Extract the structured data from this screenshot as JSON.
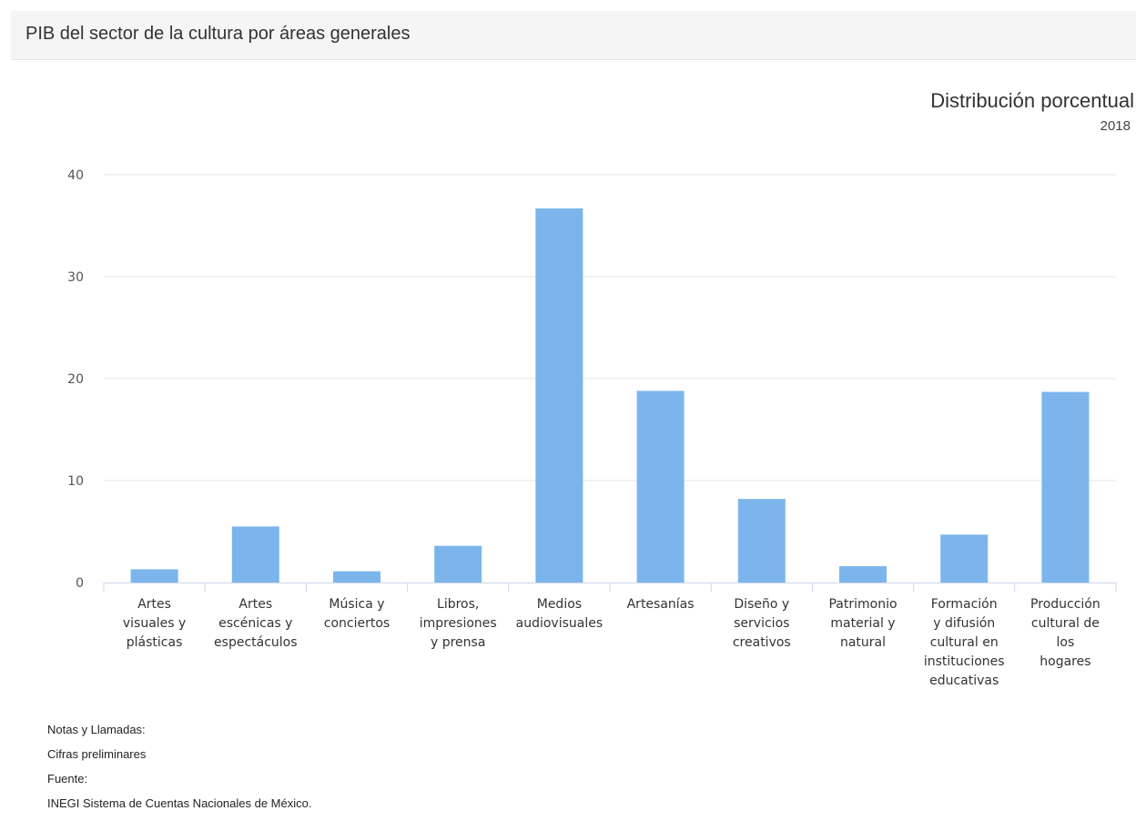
{
  "header": {
    "title": "PIB del sector de la cultura por áreas generales"
  },
  "chart_data": {
    "type": "bar",
    "title": "Distribución porcentual",
    "subtitle": "2018",
    "categories": [
      "Artes visuales y plásticas",
      "Artes escénicas y espectáculos",
      "Música y conciertos",
      "Libros, impresiones y prensa",
      "Medios audiovisuales",
      "Artesanías",
      "Diseño y servicios creativos",
      "Patrimonio material y natural",
      "Formación y difusión cultural en instituciones educativas",
      "Producción cultural de los hogares"
    ],
    "category_lines": [
      [
        "Artes",
        "visuales y",
        "plásticas"
      ],
      [
        "Artes",
        "escénicas y",
        "espectáculos"
      ],
      [
        "Música y",
        "conciertos"
      ],
      [
        "Libros,",
        "impresiones",
        "y prensa"
      ],
      [
        "Medios",
        "audiovisuales"
      ],
      [
        "Artesanías"
      ],
      [
        "Diseño y",
        "servicios",
        "creativos"
      ],
      [
        "Patrimonio",
        "material y",
        "natural"
      ],
      [
        "Formación",
        "y difusión",
        "cultural en",
        "instituciones",
        "educativas"
      ],
      [
        "Producción",
        "cultural de",
        "los",
        "hogares"
      ]
    ],
    "values": [
      1.3,
      5.5,
      1.1,
      3.6,
      36.7,
      18.8,
      8.2,
      1.6,
      4.7,
      18.7
    ],
    "ylim": [
      0,
      40
    ],
    "yticks": [
      0,
      10,
      20,
      30,
      40
    ],
    "grid": true,
    "bar_color": "#7cb5ec",
    "xlabel": "",
    "ylabel": ""
  },
  "notes": {
    "heading": "Notas y Llamadas:",
    "note": "Cifras preliminares",
    "source_heading": "Fuente:",
    "source": "INEGI Sistema de Cuentas Nacionales de México."
  }
}
